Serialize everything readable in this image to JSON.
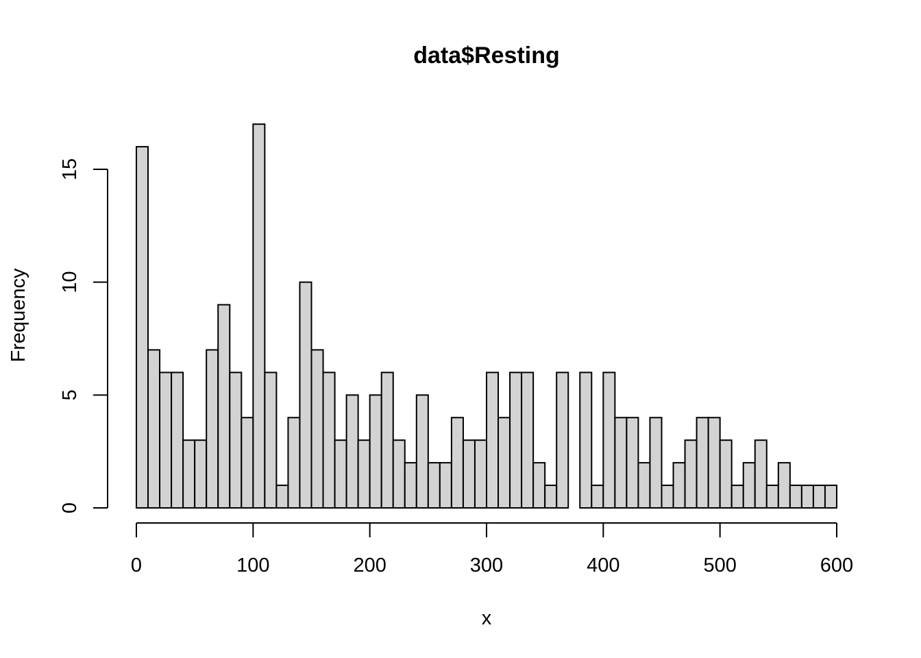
{
  "chart_data": {
    "type": "bar",
    "title": "data$Resting",
    "xlabel": "x",
    "ylabel": "Frequency",
    "bin_width": 10,
    "x_range": [
      0,
      600
    ],
    "xlim": [
      0,
      600
    ],
    "ylim": [
      0,
      17
    ],
    "x_ticks": [
      0,
      100,
      200,
      300,
      400,
      500,
      600
    ],
    "x_tick_labels": [
      "0",
      "100",
      "200",
      "300",
      "400",
      "500",
      "600"
    ],
    "y_ticks": [
      0,
      5,
      10,
      15
    ],
    "y_tick_labels": [
      "0",
      "5",
      "10",
      "15"
    ],
    "grid": false,
    "bar_fill": "#d3d3d3",
    "bar_stroke": "#000000",
    "values": [
      16,
      7,
      6,
      6,
      3,
      3,
      7,
      9,
      6,
      4,
      17,
      6,
      1,
      4,
      10,
      7,
      6,
      3,
      5,
      3,
      5,
      6,
      3,
      2,
      5,
      2,
      2,
      4,
      3,
      3,
      6,
      4,
      6,
      6,
      2,
      1,
      6,
      0,
      6,
      1,
      6,
      4,
      4,
      2,
      4,
      1,
      2,
      3,
      4,
      4,
      3,
      1,
      2,
      3,
      1,
      2,
      1,
      1,
      1,
      1
    ]
  }
}
